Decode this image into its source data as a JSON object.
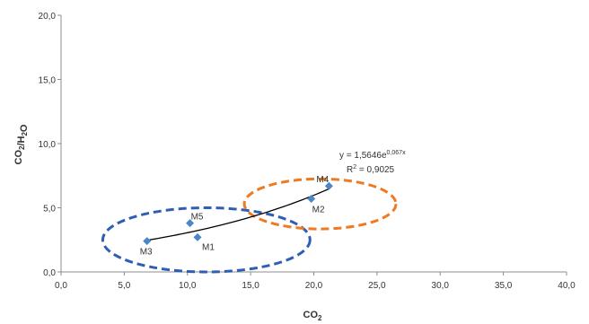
{
  "chart_data": {
    "type": "scatter",
    "title": "",
    "xlabel": "CO",
    "xlabel_sub": "2",
    "ylabel_parts": [
      {
        "t": "CO",
        "sub": false
      },
      {
        "t": "2",
        "sub": true
      },
      {
        "t": "/H",
        "sub": false
      },
      {
        "t": "2",
        "sub": true
      },
      {
        "t": "O",
        "sub": false
      }
    ],
    "xlim": [
      0,
      40
    ],
    "ylim": [
      0,
      20
    ],
    "xticks": [
      "0,0",
      "5,0",
      "10,0",
      "15,0",
      "20,0",
      "25,0",
      "30,0",
      "35,0",
      "40,0"
    ],
    "yticks": [
      "0,0",
      "5,0",
      "10,0",
      "15,0",
      "20,0"
    ],
    "grid": false,
    "marker_color": "#4a86c8",
    "points": [
      {
        "label": "M1",
        "x": 10.8,
        "y": 2.7
      },
      {
        "label": "M2",
        "x": 19.8,
        "y": 5.7
      },
      {
        "label": "M3",
        "x": 6.8,
        "y": 2.4
      },
      {
        "label": "M4",
        "x": 21.2,
        "y": 6.7
      },
      {
        "label": "M5",
        "x": 10.2,
        "y": 3.8
      }
    ],
    "trendline": {
      "type": "exponential",
      "a": 1.5646,
      "b": 0.067,
      "x_range": [
        6.8,
        21.2
      ],
      "color": "#000000",
      "equation_parts": [
        {
          "t": "y = 1,5646e",
          "sup": false
        },
        {
          "t": "0,067x",
          "sup": true
        }
      ],
      "r2_parts": [
        {
          "t": "R",
          "sup": false
        },
        {
          "t": "2",
          "sup": true
        },
        {
          "t": " = 0,9025",
          "sup": false
        }
      ]
    },
    "clusters": [
      {
        "color": "#2e5fb5",
        "members": [
          "M1",
          "M3",
          "M5"
        ],
        "cx": 11.5,
        "cy": 2.5,
        "rx": 8.2,
        "ry": 2.5
      },
      {
        "color": "#ee7a22",
        "members": [
          "M2",
          "M4"
        ],
        "cx": 20.5,
        "cy": 5.3,
        "rx": 6.0,
        "ry": 1.95
      }
    ]
  }
}
